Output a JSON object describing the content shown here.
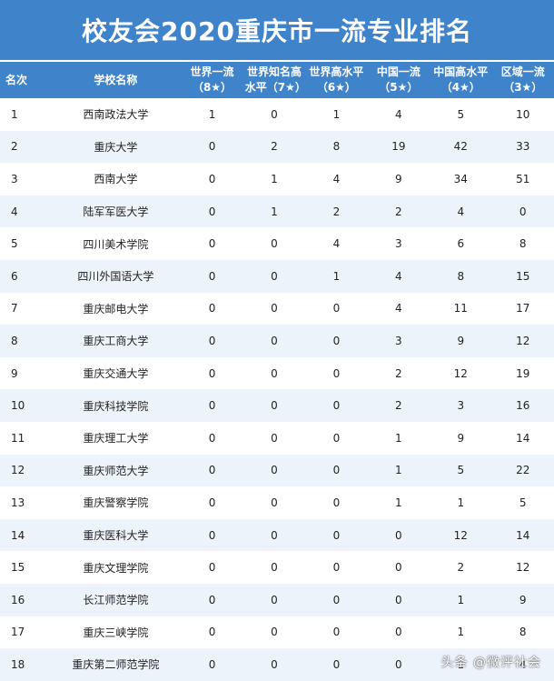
{
  "title": "校友会2020重庆市一流专业排名",
  "headers": {
    "rank": "名次",
    "school": "学校名称",
    "c1": "世界一流（8★）",
    "c2": "世界知名高水平（7★）",
    "c3": "世界高水平（6★）",
    "c4": "中国一流（5★）",
    "c5": "中国高水平（4★）",
    "c6": "区域一流（3★）"
  },
  "rows": [
    {
      "rank": "1",
      "school": "西南政法大学",
      "c1": "1",
      "c2": "0",
      "c3": "1",
      "c4": "4",
      "c5": "5",
      "c6": "10"
    },
    {
      "rank": "2",
      "school": "重庆大学",
      "c1": "0",
      "c2": "2",
      "c3": "8",
      "c4": "19",
      "c5": "42",
      "c6": "33"
    },
    {
      "rank": "3",
      "school": "西南大学",
      "c1": "0",
      "c2": "1",
      "c3": "4",
      "c4": "9",
      "c5": "34",
      "c6": "51"
    },
    {
      "rank": "4",
      "school": "陆军军医大学",
      "c1": "0",
      "c2": "1",
      "c3": "2",
      "c4": "2",
      "c5": "4",
      "c6": "0"
    },
    {
      "rank": "5",
      "school": "四川美术学院",
      "c1": "0",
      "c2": "0",
      "c3": "4",
      "c4": "3",
      "c5": "6",
      "c6": "8"
    },
    {
      "rank": "6",
      "school": "四川外国语大学",
      "c1": "0",
      "c2": "0",
      "c3": "1",
      "c4": "4",
      "c5": "8",
      "c6": "15"
    },
    {
      "rank": "7",
      "school": "重庆邮电大学",
      "c1": "0",
      "c2": "0",
      "c3": "0",
      "c4": "4",
      "c5": "11",
      "c6": "17"
    },
    {
      "rank": "8",
      "school": "重庆工商大学",
      "c1": "0",
      "c2": "0",
      "c3": "0",
      "c4": "3",
      "c5": "9",
      "c6": "12"
    },
    {
      "rank": "9",
      "school": "重庆交通大学",
      "c1": "0",
      "c2": "0",
      "c3": "0",
      "c4": "2",
      "c5": "12",
      "c6": "19"
    },
    {
      "rank": "10",
      "school": "重庆科技学院",
      "c1": "0",
      "c2": "0",
      "c3": "0",
      "c4": "2",
      "c5": "3",
      "c6": "16"
    },
    {
      "rank": "11",
      "school": "重庆理工大学",
      "c1": "0",
      "c2": "0",
      "c3": "0",
      "c4": "1",
      "c5": "9",
      "c6": "14"
    },
    {
      "rank": "12",
      "school": "重庆师范大学",
      "c1": "0",
      "c2": "0",
      "c3": "0",
      "c4": "1",
      "c5": "5",
      "c6": "22"
    },
    {
      "rank": "13",
      "school": "重庆警察学院",
      "c1": "0",
      "c2": "0",
      "c3": "0",
      "c4": "1",
      "c5": "1",
      "c6": "5"
    },
    {
      "rank": "14",
      "school": "重庆医科大学",
      "c1": "0",
      "c2": "0",
      "c3": "0",
      "c4": "0",
      "c5": "12",
      "c6": "14"
    },
    {
      "rank": "15",
      "school": "重庆文理学院",
      "c1": "0",
      "c2": "0",
      "c3": "0",
      "c4": "0",
      "c5": "2",
      "c6": "12"
    },
    {
      "rank": "16",
      "school": "长江师范学院",
      "c1": "0",
      "c2": "0",
      "c3": "0",
      "c4": "0",
      "c5": "1",
      "c6": "9"
    },
    {
      "rank": "17",
      "school": "重庆三峡学院",
      "c1": "0",
      "c2": "0",
      "c3": "0",
      "c4": "0",
      "c5": "1",
      "c6": "8"
    },
    {
      "rank": "18",
      "school": "重庆第二师范学院",
      "c1": "0",
      "c2": "0",
      "c3": "0",
      "c4": "0",
      "c5": "1",
      "c6": "4"
    }
  ],
  "watermark": "头条 @微评社会",
  "colors": {
    "header_bg": "#3f83cb",
    "stripe": "#edf3fb"
  }
}
